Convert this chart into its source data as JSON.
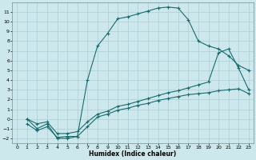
{
  "xlabel": "Humidex (Indice chaleur)",
  "background_color": "#cce8ec",
  "grid_color": "#aacdd4",
  "line_color": "#1a6b6e",
  "xlim": [
    -0.5,
    23.5
  ],
  "ylim": [
    -2.5,
    12
  ],
  "xticks": [
    0,
    1,
    2,
    3,
    4,
    5,
    6,
    7,
    8,
    9,
    10,
    11,
    12,
    13,
    14,
    15,
    16,
    17,
    18,
    19,
    20,
    21,
    22,
    23
  ],
  "yticks": [
    -2,
    -1,
    0,
    1,
    2,
    3,
    4,
    5,
    6,
    7,
    8,
    9,
    10,
    11
  ],
  "curve1_x": [
    1,
    2,
    3,
    4,
    5,
    6,
    7,
    8,
    9,
    10,
    11,
    12,
    13,
    14,
    15,
    16,
    17,
    18,
    19,
    20,
    21,
    22,
    23
  ],
  "curve1_y": [
    0,
    -1,
    -0.5,
    -2,
    -2,
    -1.8,
    4,
    7.5,
    8.8,
    10.3,
    10.5,
    10.8,
    11.1,
    11.4,
    11.5,
    11.4,
    10.2,
    8,
    7.5,
    7.2,
    6.5,
    5.5,
    5.0
  ],
  "curve2_x": [
    1,
    2,
    3,
    4,
    5,
    6,
    7,
    8,
    9,
    10,
    11,
    12,
    13,
    14,
    15,
    16,
    17,
    18,
    19,
    20,
    21,
    22,
    23
  ],
  "curve2_y": [
    -0.5,
    -1.2,
    -0.8,
    -1.9,
    -1.8,
    -1.8,
    -0.8,
    0.2,
    0.5,
    0.9,
    1.1,
    1.4,
    1.6,
    1.9,
    2.1,
    2.3,
    2.5,
    2.6,
    2.7,
    2.9,
    3.0,
    3.1,
    2.6
  ],
  "curve3_x": [
    1,
    2,
    3,
    4,
    5,
    6,
    7,
    8,
    9,
    10,
    11,
    12,
    13,
    14,
    15,
    16,
    17,
    18,
    19,
    20,
    21,
    22,
    23
  ],
  "curve3_y": [
    0,
    -0.5,
    -0.3,
    -1.5,
    -1.5,
    -1.3,
    -0.3,
    0.5,
    0.8,
    1.3,
    1.5,
    1.8,
    2.1,
    2.4,
    2.7,
    2.9,
    3.2,
    3.5,
    3.8,
    6.8,
    7.2,
    5.2,
    3.0
  ]
}
